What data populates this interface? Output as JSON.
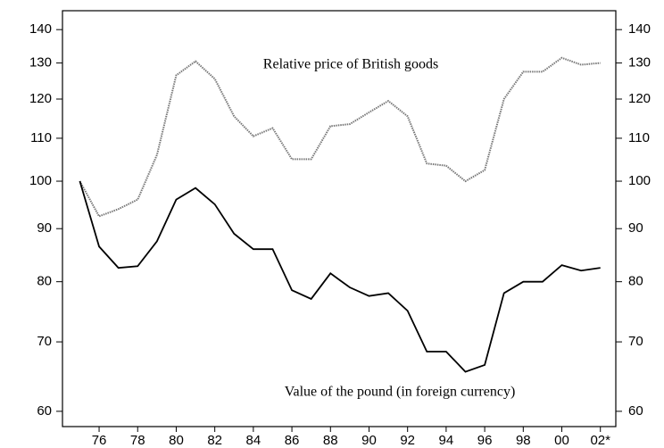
{
  "chart_data": {
    "type": "line",
    "annotations": [
      "Relative price of British goods",
      "Value of the pound (in foreign currency)"
    ],
    "x": [
      1975,
      1976,
      1977,
      1978,
      1979,
      1980,
      1981,
      1982,
      1983,
      1984,
      1985,
      1986,
      1987,
      1988,
      1989,
      1990,
      1991,
      1992,
      1993,
      1994,
      1995,
      1996,
      1997,
      1998,
      1999,
      2000,
      2001,
      2002
    ],
    "series": [
      {
        "color": "#777777",
        "dashed": true,
        "values": [
          100,
          92.5,
          94,
          96,
          106,
          126.5,
          130.5,
          125.5,
          115.5,
          110.5,
          112.5,
          105,
          105,
          113,
          113.5,
          116.5,
          119.5,
          115.5,
          104,
          103.5,
          100,
          102.5,
          120,
          127.5,
          127.5,
          131.5,
          129.5,
          130
        ]
      },
      {
        "color": "#000000",
        "dashed": false,
        "values": [
          100,
          86.5,
          82.5,
          82.8,
          87.5,
          96,
          98.5,
          95,
          89,
          86,
          86,
          78.5,
          77,
          81.5,
          79,
          77.5,
          78,
          75,
          68.5,
          68.5,
          65.5,
          66.5,
          78,
          80,
          80,
          83,
          82,
          82.5
        ]
      }
    ],
    "yscale": "log",
    "xlim": [
      1974.1,
      2002.8
    ],
    "xticks": [
      {
        "value": 1976,
        "label": "76"
      },
      {
        "value": 1978,
        "label": "78"
      },
      {
        "value": 1980,
        "label": "80"
      },
      {
        "value": 1982,
        "label": "82"
      },
      {
        "value": 1984,
        "label": "84"
      },
      {
        "value": 1986,
        "label": "86"
      },
      {
        "value": 1988,
        "label": "88"
      },
      {
        "value": 1990,
        "label": "90"
      },
      {
        "value": 1992,
        "label": "92"
      },
      {
        "value": 1994,
        "label": "94"
      },
      {
        "value": 1996,
        "label": "96"
      },
      {
        "value": 1998,
        "label": "98"
      },
      {
        "value": 2000,
        "label": "00"
      },
      {
        "value": 2002,
        "label": "02*"
      }
    ],
    "ylim": [
      58,
      146
    ],
    "yticks": [
      60,
      70,
      80,
      90,
      100,
      110,
      120,
      130,
      140
    ],
    "y2lim": [
      58,
      146
    ],
    "y2ticks": [
      60,
      70,
      80,
      90,
      100,
      110,
      120,
      130,
      140
    ]
  }
}
